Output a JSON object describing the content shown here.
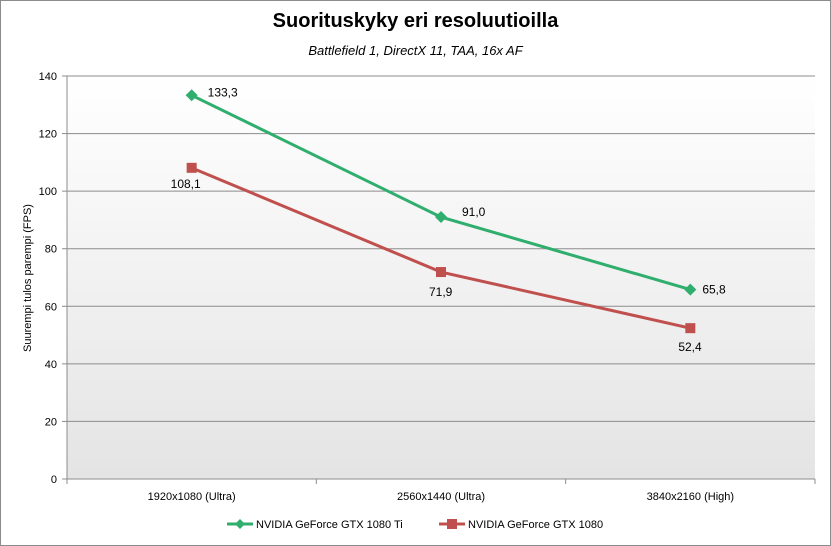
{
  "chart_data": {
    "type": "line",
    "title": "Suorituskyky eri resoluutioilla",
    "subtitle": "Battlefield 1, DirectX 11, TAA, 16x AF",
    "ylabel": "Suurempi tulos parempi (FPS)",
    "xlabel": "",
    "categories": [
      "1920x1080 (Ultra)",
      "2560x1440 (Ultra)",
      "3840x2160 (High)"
    ],
    "ylim": [
      0,
      140
    ],
    "yticks": [
      0,
      20,
      40,
      60,
      80,
      100,
      120,
      140
    ],
    "grid": true,
    "legend_position": "bottom",
    "series": [
      {
        "name": "NVIDIA GeForce GTX 1080 Ti",
        "values": [
          133.3,
          91.0,
          65.8
        ],
        "labels": [
          "133,3",
          "91,0",
          "65,8"
        ],
        "color": "#2fae6e",
        "marker": "diamond"
      },
      {
        "name": "NVIDIA GeForce GTX 1080",
        "values": [
          108.1,
          71.9,
          52.4
        ],
        "labels": [
          "108,1",
          "71,9",
          "52,4"
        ],
        "color": "#c0504d",
        "marker": "square"
      }
    ]
  }
}
